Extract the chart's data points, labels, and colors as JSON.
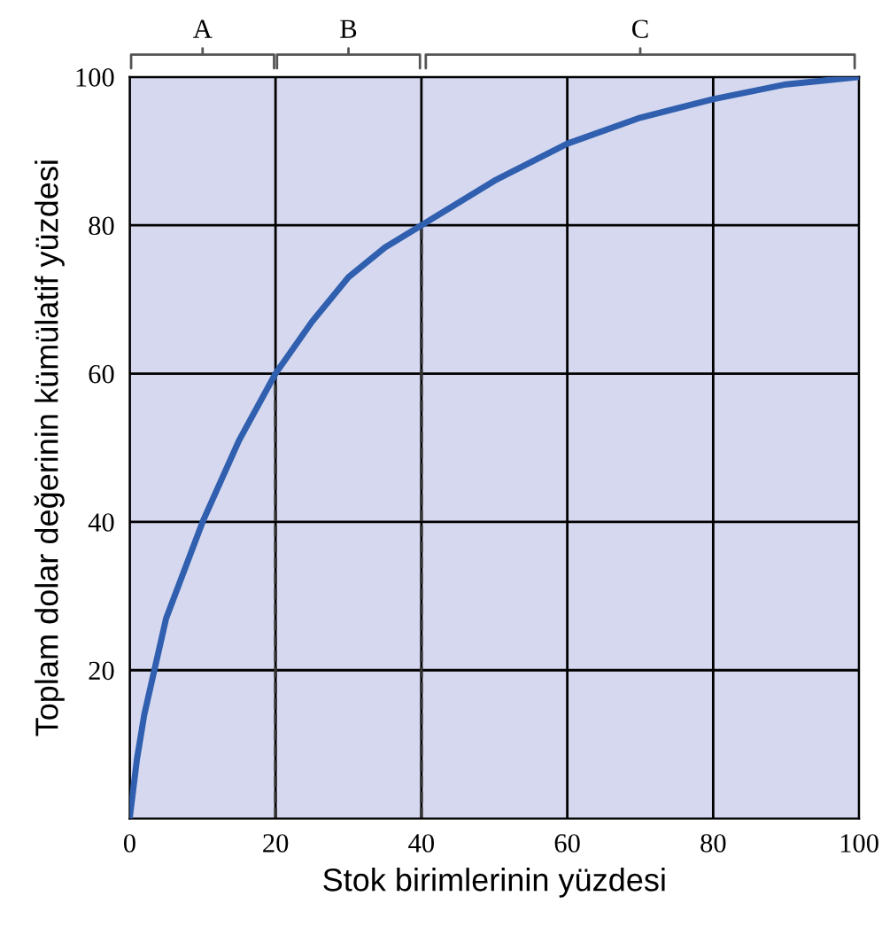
{
  "chart_data": {
    "type": "line",
    "xlabel": "Stok birimlerinin yüzdesi",
    "ylabel": "Toplam dolar değerinin kümülatif yüzdesi",
    "x": [
      0,
      1,
      2,
      5,
      10,
      15,
      20,
      25,
      30,
      35,
      40,
      50,
      60,
      70,
      80,
      90,
      100
    ],
    "series": [
      {
        "color": "#2f5fae",
        "values": [
          0,
          8,
          14,
          27,
          40,
          51,
          60,
          67,
          73,
          77,
          80,
          86,
          91,
          94.5,
          97,
          99,
          100
        ]
      }
    ],
    "xlim": [
      0,
      100
    ],
    "ylim": [
      0,
      100
    ],
    "xticks": [
      0,
      20,
      40,
      60,
      80,
      100
    ],
    "yticks": [
      20,
      40,
      60,
      80,
      100
    ],
    "grid": true,
    "marker": "none",
    "line_style": "solid",
    "ref_lines": [
      {
        "axis": "x",
        "value": 20,
        "line_style": "dashed",
        "color": "#333333"
      },
      {
        "axis": "x",
        "value": 40,
        "line_style": "dashed",
        "color": "#333333"
      }
    ],
    "annotations": [
      "A",
      "B",
      "C"
    ]
  }
}
